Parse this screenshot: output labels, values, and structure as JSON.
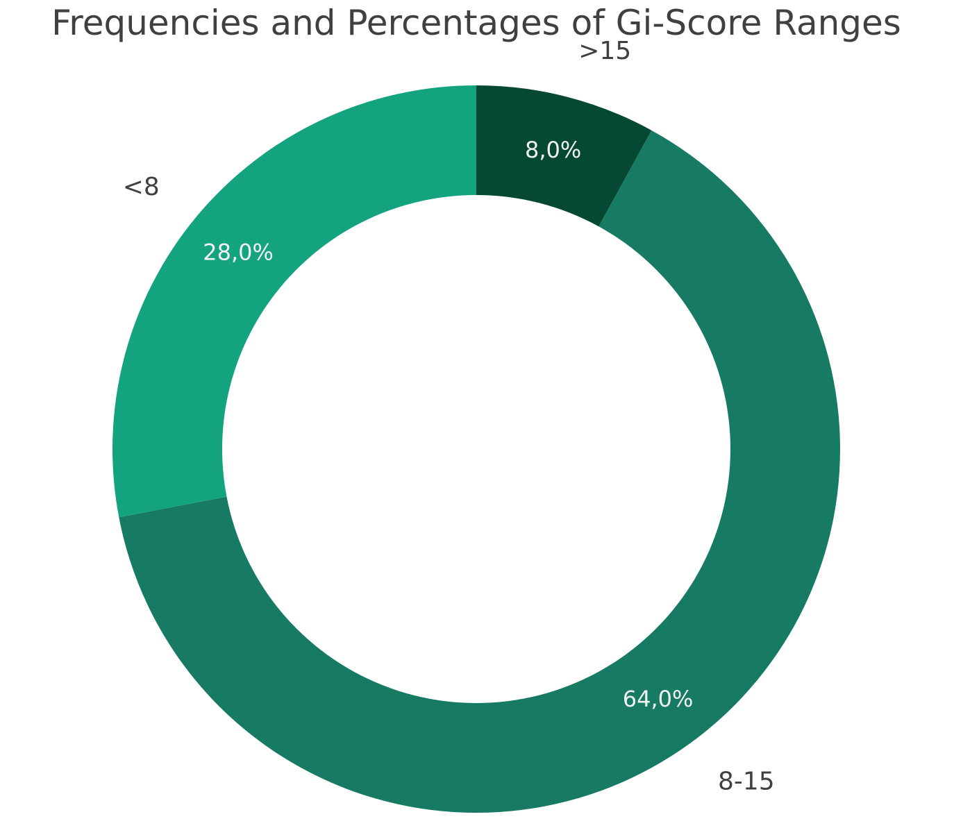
{
  "chart_data": {
    "type": "pie",
    "title": "Frequencies and Percentages of Gi-Score Ranges",
    "donut": true,
    "start_angle_deg": 90,
    "direction": "clockwise",
    "slices": [
      {
        "label": ">15",
        "value": 8.0,
        "pct_label": "8,0%",
        "color": "#054834"
      },
      {
        "label": "8-15",
        "value": 64.0,
        "pct_label": "64,0%",
        "color": "#177a63"
      },
      {
        "label": "<8",
        "value": 28.0,
        "pct_label": "28,0%",
        "color": "#13a37f"
      }
    ]
  }
}
